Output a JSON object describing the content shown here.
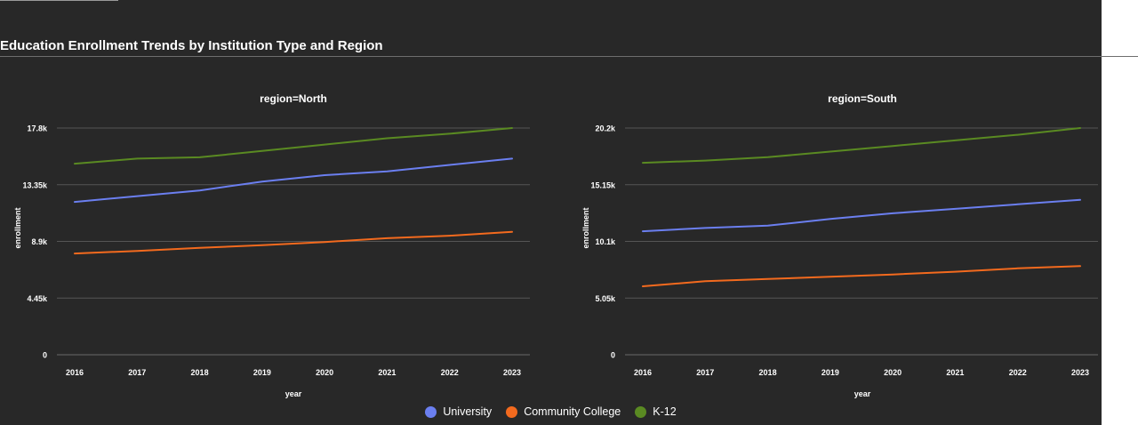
{
  "title": "Education Enrollment Trends by Institution Type and Region",
  "colors": {
    "University": "#6b7ff0",
    "Community College": "#f36a1e",
    "K-12": "#5a8a22",
    "background": "#282828",
    "grid": "#555555",
    "text": "#ffffff"
  },
  "legend": {
    "items": [
      {
        "label": "University"
      },
      {
        "label": "Community College"
      },
      {
        "label": "K-12"
      }
    ]
  },
  "chart_data": [
    {
      "type": "line",
      "title": "region=North",
      "xlabel": "year",
      "ylabel": "enrollment",
      "x": [
        2016,
        2017,
        2018,
        2019,
        2020,
        2021,
        2022,
        2023
      ],
      "x_ticks": [
        "2016",
        "2017",
        "2018",
        "2019",
        "2020",
        "2021",
        "2022",
        "2023"
      ],
      "y_ticks": [
        0,
        4450,
        8900,
        13350,
        17800
      ],
      "y_tick_labels": [
        "0",
        "4.45k",
        "8.9k",
        "13.35k",
        "17.8k"
      ],
      "ylim": [
        0,
        17800
      ],
      "grid": true,
      "series": [
        {
          "name": "University",
          "values": [
            12000,
            12450,
            12900,
            13600,
            14100,
            14400,
            14900,
            15400
          ]
        },
        {
          "name": "Community College",
          "values": [
            7950,
            8150,
            8400,
            8600,
            8850,
            9150,
            9350,
            9650
          ]
        },
        {
          "name": "K-12",
          "values": [
            15000,
            15400,
            15500,
            16000,
            16500,
            17000,
            17350,
            17800
          ]
        }
      ]
    },
    {
      "type": "line",
      "title": "region=South",
      "xlabel": "year",
      "ylabel": "enrollment",
      "x": [
        2016,
        2017,
        2018,
        2019,
        2020,
        2021,
        2022,
        2023
      ],
      "x_ticks": [
        "2016",
        "2017",
        "2018",
        "2019",
        "2020",
        "2021",
        "2022",
        "2023"
      ],
      "y_ticks": [
        0,
        5050,
        10100,
        15150,
        20200
      ],
      "y_tick_labels": [
        "0",
        "5.05k",
        "10.1k",
        "15.15k",
        "20.2k"
      ],
      "ylim": [
        0,
        20200
      ],
      "grid": true,
      "series": [
        {
          "name": "University",
          "values": [
            11000,
            11300,
            11500,
            12100,
            12600,
            13000,
            13400,
            13800
          ]
        },
        {
          "name": "Community College",
          "values": [
            6100,
            6550,
            6750,
            6950,
            7150,
            7400,
            7700,
            7900
          ]
        },
        {
          "name": "K-12",
          "values": [
            17100,
            17300,
            17600,
            18100,
            18600,
            19100,
            19600,
            20200
          ]
        }
      ]
    }
  ]
}
